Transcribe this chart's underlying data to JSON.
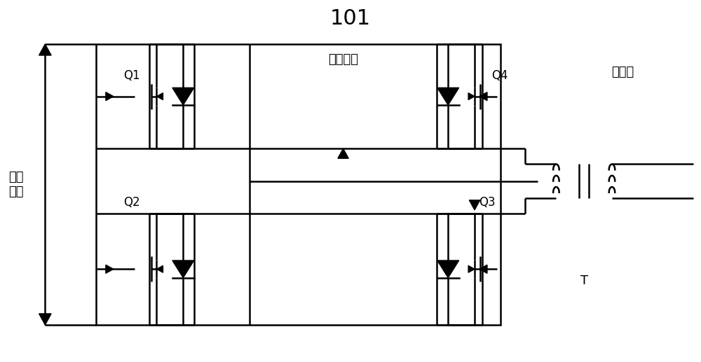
{
  "title": "101",
  "label_full_bridge": "全桥电路",
  "label_transformer": "变压器",
  "label_T": "T",
  "label_dc_voltage": "直流\n电压",
  "label_Q1": "Q1",
  "label_Q2": "Q2",
  "label_Q3": "Q3",
  "label_Q4": "Q4",
  "line_color": "#000000",
  "bg_color": "#ffffff",
  "lw": 1.8
}
